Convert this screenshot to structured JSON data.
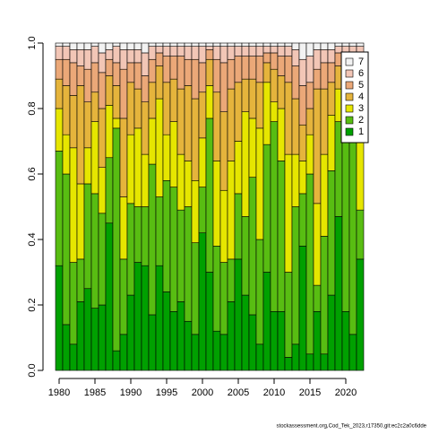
{
  "chart_data": {
    "type": "stacked_bar",
    "categories": [
      "1980",
      null,
      null,
      null,
      null,
      "1985",
      null,
      null,
      null,
      null,
      "1990",
      null,
      null,
      null,
      null,
      "1995",
      null,
      null,
      null,
      null,
      "2000",
      null,
      null,
      null,
      null,
      "2005",
      null,
      null,
      null,
      null,
      "2010",
      null,
      null,
      null,
      null,
      "2015",
      null,
      null,
      null,
      null,
      "2020",
      null,
      null
    ],
    "series": [
      {
        "name": "1",
        "color": "#00a000",
        "values": [
          0.32,
          0.14,
          0.08,
          0.21,
          0.25,
          0.19,
          0.2,
          0.45,
          0.06,
          0.11,
          0.23,
          0.33,
          0.32,
          0.17,
          0.32,
          0.24,
          0.18,
          0.21,
          0.15,
          0.11,
          0.42,
          0.3,
          0.12,
          0.11,
          0.21,
          0.34,
          0.23,
          0.17,
          0.08,
          0.3,
          0.18,
          0.18,
          0.04,
          0.08,
          0.38,
          0.05,
          0.18,
          0.05,
          0.23,
          0.47,
          0.18,
          0.11,
          0.34
        ]
      },
      {
        "name": "2",
        "color": "#58bd12",
        "values": [
          0.35,
          0.46,
          0.25,
          0.13,
          0.32,
          0.35,
          0.28,
          0.2,
          0.68,
          0.23,
          0.28,
          0.17,
          0.18,
          0.46,
          0.21,
          0.34,
          0.38,
          0.28,
          0.35,
          0.28,
          0.14,
          0.47,
          0.26,
          0.22,
          0.13,
          0.2,
          0.24,
          0.42,
          0.32,
          0.39,
          0.58,
          0.46,
          0.26,
          0.42,
          0.16,
          0.55,
          0.08,
          0.36,
          0.38,
          0.29,
          0.61,
          0.59,
          0.15
        ]
      },
      {
        "name": "3",
        "color": "#e6e600",
        "values": [
          0.13,
          0.12,
          0.35,
          0.23,
          0.11,
          0.22,
          0.14,
          0.16,
          0.03,
          0.19,
          0.21,
          0.24,
          0.16,
          0.14,
          0.3,
          0.14,
          0.2,
          0.17,
          0.14,
          0.19,
          0.15,
          0.1,
          0.26,
          0.22,
          0.3,
          0.16,
          0.32,
          0.18,
          0.34,
          0.19,
          0.06,
          0.16,
          0.36,
          0.16,
          0.1,
          0.12,
          0.25,
          0.25,
          0.17,
          0.1,
          0.09,
          0.12,
          0.3
        ]
      },
      {
        "name": "4",
        "color": "#e5b43c",
        "values": [
          0.09,
          0.15,
          0.16,
          0.3,
          0.14,
          0.09,
          0.18,
          0.09,
          0.1,
          0.24,
          0.16,
          0.12,
          0.16,
          0.11,
          0.1,
          0.16,
          0.13,
          0.2,
          0.23,
          0.25,
          0.14,
          0.08,
          0.21,
          0.24,
          0.22,
          0.18,
          0.1,
          0.12,
          0.14,
          0.06,
          0.1,
          0.1,
          0.22,
          0.17,
          0.11,
          0.08,
          0.35,
          0.2,
          0.1,
          0.07,
          0.06,
          0.09,
          0.12
        ]
      },
      {
        "name": "5",
        "color": "#eba878",
        "values": [
          0.06,
          0.08,
          0.1,
          0.06,
          0.1,
          0.09,
          0.11,
          0.05,
          0.07,
          0.15,
          0.06,
          0.08,
          0.08,
          0.07,
          0.04,
          0.08,
          0.07,
          0.1,
          0.08,
          0.12,
          0.09,
          0.03,
          0.1,
          0.15,
          0.09,
          0.08,
          0.07,
          0.07,
          0.08,
          0.03,
          0.05,
          0.06,
          0.08,
          0.1,
          0.12,
          0.08,
          0.06,
          0.08,
          0.06,
          0.04,
          0.03,
          0.05,
          0.05
        ]
      },
      {
        "name": "6",
        "color": "#f2c6b6",
        "values": [
          0.04,
          0.04,
          0.04,
          0.05,
          0.06,
          0.05,
          0.06,
          0.03,
          0.05,
          0.06,
          0.04,
          0.04,
          0.07,
          0.04,
          0.02,
          0.03,
          0.03,
          0.03,
          0.04,
          0.04,
          0.05,
          0.01,
          0.04,
          0.05,
          0.04,
          0.03,
          0.03,
          0.03,
          0.03,
          0.02,
          0.02,
          0.03,
          0.03,
          0.05,
          0.08,
          0.08,
          0.06,
          0.04,
          0.04,
          0.02,
          0.02,
          0.03,
          0.03
        ]
      },
      {
        "name": "7",
        "color": "#f2f2f2",
        "values": [
          0.01,
          0.01,
          0.02,
          0.02,
          0.02,
          0.01,
          0.03,
          0.02,
          0.01,
          0.02,
          0.02,
          0.02,
          0.03,
          0.01,
          0.01,
          0.01,
          0.01,
          0.01,
          0.01,
          0.01,
          0.01,
          0.01,
          0.01,
          0.01,
          0.01,
          0.01,
          0.01,
          0.01,
          0.01,
          0.01,
          0.01,
          0.01,
          0.01,
          0.02,
          0.05,
          0.04,
          0.02,
          0.02,
          0.02,
          0.01,
          0.01,
          0.01,
          0.01
        ]
      }
    ],
    "ylim": [
      0,
      1
    ],
    "yticks": [
      {
        "value": 0,
        "label": "0.0"
      },
      0.2,
      0.4,
      0.6,
      0.8,
      {
        "value": 1,
        "label": "1.0"
      }
    ],
    "legend": "topright",
    "footer": "stockassessment.org,Cod_Tek_2023,r17350,git:ec2c2a0c6dde"
  }
}
